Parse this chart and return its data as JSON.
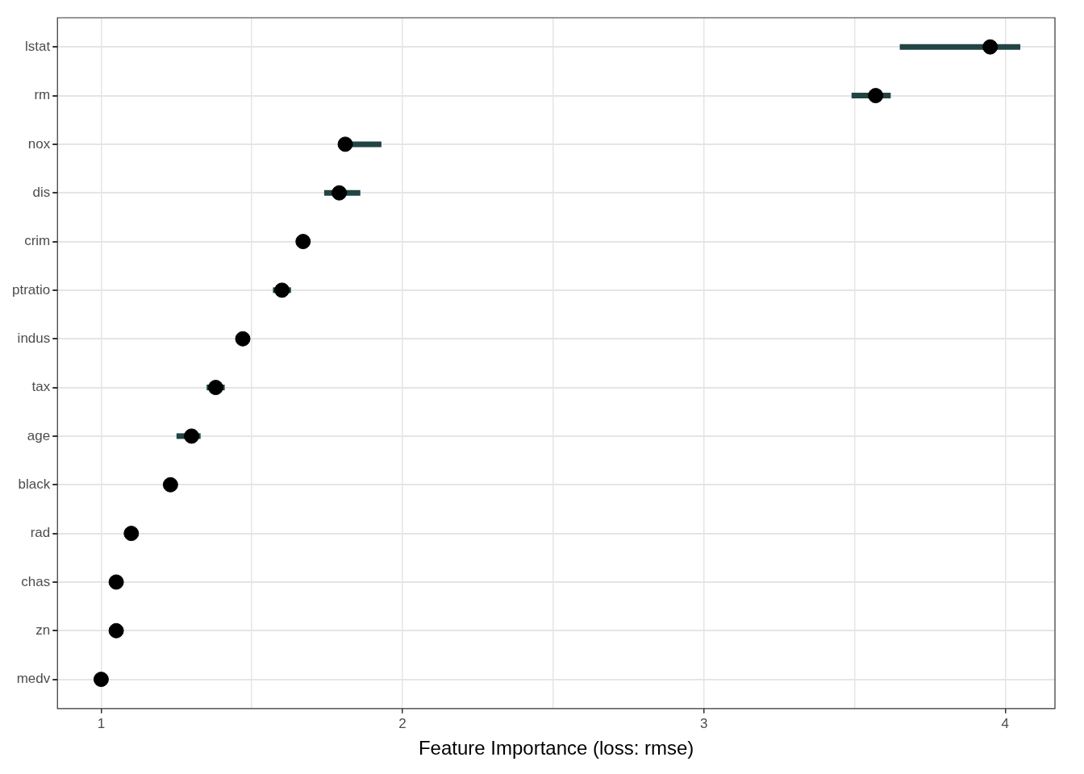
{
  "chart_data": {
    "type": "scatter",
    "orientation": "horizontal",
    "xlabel": "Feature Importance (loss: rmse)",
    "categories": [
      "lstat",
      "rm",
      "nox",
      "dis",
      "crim",
      "ptratio",
      "indus",
      "tax",
      "age",
      "black",
      "rad",
      "chas",
      "zn",
      "medv"
    ],
    "series": [
      {
        "color": "#000000",
        "values": [
          3.95,
          3.57,
          1.81,
          1.79,
          1.67,
          1.6,
          1.47,
          1.38,
          1.3,
          1.23,
          1.1,
          1.05,
          1.05,
          1.0
        ],
        "errors": [
          [
            3.65,
            4.05
          ],
          [
            3.49,
            3.62
          ],
          [
            1.79,
            1.93
          ],
          [
            1.74,
            1.86
          ],
          null,
          [
            1.57,
            1.63
          ],
          null,
          [
            1.35,
            1.41
          ],
          [
            1.25,
            1.33
          ],
          null,
          null,
          null,
          null,
          null
        ]
      }
    ],
    "xlim": [
      0.855,
      4.165
    ],
    "xticks": [
      1,
      {
        "value": 1.5,
        "label": null
      },
      2,
      {
        "value": 2.5,
        "label": null
      },
      3,
      {
        "value": 3.5,
        "label": null
      },
      4
    ],
    "grid": true,
    "legend": false,
    "marker": "circle"
  }
}
